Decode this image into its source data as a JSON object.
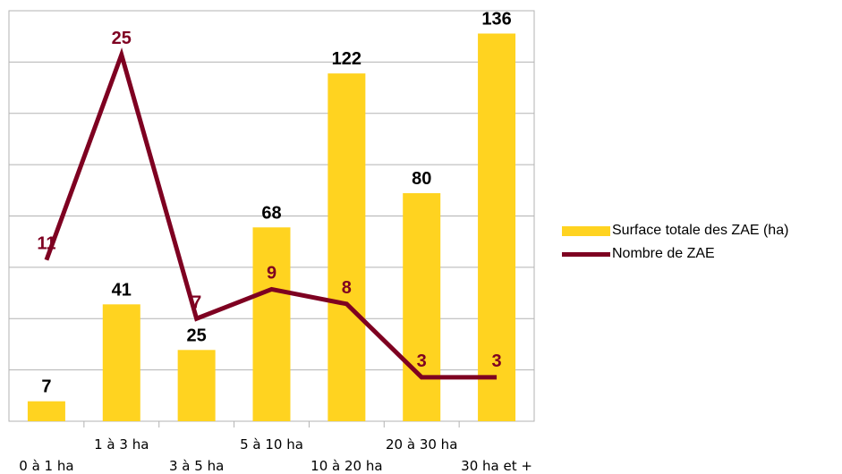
{
  "chart_data": {
    "type": "bar",
    "categories": [
      "0 à 1 ha",
      "1 à 3 ha",
      "3 à 5 ha",
      "5 à 10 ha",
      "10 à 20 ha",
      "20 à 30 ha",
      "30 ha et +"
    ],
    "series": [
      {
        "name": "Surface totale des ZAE (ha)",
        "type": "bar",
        "axis": "primary",
        "values": [
          7,
          41,
          25,
          68,
          122,
          80,
          136
        ],
        "color": "#FFD320"
      },
      {
        "name": "Nombre de ZAE",
        "type": "line",
        "axis": "secondary",
        "values": [
          11,
          25,
          7,
          9,
          8,
          3,
          3
        ],
        "color": "#7E0021"
      }
    ],
    "ylim": [
      0,
      144
    ],
    "y2lim": [
      0,
      28
    ],
    "grid": true,
    "legend": "right",
    "label_colors": {
      "bar": "#000000",
      "line": "#7E0021"
    }
  }
}
